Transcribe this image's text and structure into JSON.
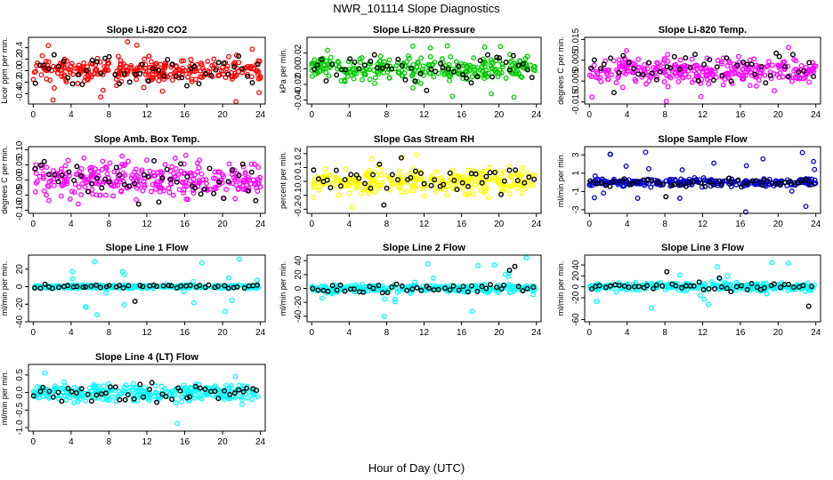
{
  "figure": {
    "title": "NWR_101114  Slope Diagnostics",
    "xlabel": "Hour of Day (UTC)"
  },
  "chart_data": [
    {
      "type": "scatter",
      "title": "Slope Li-820 CO2",
      "ylabel": "Licor ppm per min.",
      "color": "#ff0000",
      "xlim": [
        -0.5,
        24.5
      ],
      "ylim": [
        -0.58,
        0.58
      ],
      "xticks": [
        0,
        4,
        8,
        12,
        16,
        20,
        24
      ],
      "yticks": [
        -0.4,
        -0.2,
        0.0,
        0.2,
        0.4
      ],
      "ytick_labels": [
        "-0.4",
        "-0.2",
        "0.0",
        "0.2",
        "0.4"
      ],
      "summary": {
        "main_spread": 0.3,
        "outlier_spread": 0.55,
        "seed": 11
      }
    },
    {
      "type": "scatter",
      "title": "Slope Li-820 Pressure",
      "ylabel": "kPa per min.",
      "color": "#00cc00",
      "xlim": [
        -0.5,
        24.5
      ],
      "ylim": [
        -0.045,
        0.04
      ],
      "xticks": [
        0,
        4,
        8,
        12,
        16,
        20,
        24
      ],
      "yticks": [
        -0.04,
        -0.02,
        0.0,
        0.02
      ],
      "ytick_labels": [
        "-0.04",
        "-0.02",
        "0.00",
        "0.02"
      ],
      "summary": {
        "main_spread": 0.022,
        "outlier_spread": 0.038,
        "seed": 23
      }
    },
    {
      "type": "scatter",
      "title": "Slope Li-820 Temp.",
      "ylabel": "degrees C per min.",
      "color": "#ff00ff",
      "xlim": [
        -0.5,
        24.5
      ],
      "ylim": [
        -0.016,
        0.016
      ],
      "xticks": [
        0,
        4,
        8,
        12,
        16,
        20,
        24
      ],
      "yticks": [
        -0.015,
        -0.005,
        0.005,
        0.015
      ],
      "ytick_labels": [
        "-0.015",
        "-0.005",
        "0.005",
        "0.015"
      ],
      "summary": {
        "main_spread": 0.009,
        "outlier_spread": 0.015,
        "seed": 37
      }
    },
    {
      "type": "scatter",
      "title": "Slope Amb. Box Temp.",
      "ylabel": "degrees C per min.",
      "color": "#ff00ff",
      "xlim": [
        -0.5,
        24.5
      ],
      "ylim": [
        -0.11,
        0.11
      ],
      "xticks": [
        0,
        4,
        8,
        12,
        16,
        20,
        24
      ],
      "yticks": [
        -0.1,
        -0.05,
        0.0,
        0.05,
        0.1
      ],
      "ytick_labels": [
        "-0.10",
        "-0.05",
        "0.00",
        "0.05",
        "0.10"
      ],
      "summary": {
        "main_spread": 0.08,
        "outlier_spread": 0.1,
        "seed": 41
      }
    },
    {
      "type": "scatter",
      "title": "Slope Gas Stream RH",
      "ylabel": "percent per min.",
      "color": "#ffff00",
      "xlim": [
        -0.5,
        24.5
      ],
      "ylim": [
        -0.23,
        0.25
      ],
      "xticks": [
        0,
        4,
        8,
        12,
        16,
        20,
        24
      ],
      "yticks": [
        -0.2,
        -0.1,
        0.0,
        0.1,
        0.2
      ],
      "ytick_labels": [
        "-0.2",
        "-0.1",
        "0.0",
        "0.1",
        "0.2"
      ],
      "summary": {
        "main_spread": 0.13,
        "outlier_spread": 0.22,
        "seed": 53
      }
    },
    {
      "type": "scatter",
      "title": "Slope Sample Flow",
      "ylabel": "ml/min per min.",
      "color": "#0000cc",
      "xlim": [
        -0.5,
        24.5
      ],
      "ylim": [
        -3.4,
        3.9
      ],
      "xticks": [
        0,
        4,
        8,
        12,
        16,
        20,
        24
      ],
      "yticks": [
        -3,
        -1,
        1,
        3
      ],
      "ytick_labels": [
        "-3",
        "-1",
        "1",
        "3"
      ],
      "summary": {
        "main_spread": 0.6,
        "outlier_spread": 3.4,
        "seed": 67
      }
    },
    {
      "type": "scatter",
      "title": "Slope Line 1 Flow",
      "ylabel": "ml/min per min.",
      "color": "#00ffff",
      "xlim": [
        -0.5,
        24.5
      ],
      "ylim": [
        -40,
        36
      ],
      "xticks": [
        0,
        4,
        8,
        12,
        16,
        20,
        24
      ],
      "yticks": [
        -40,
        -20,
        0,
        20
      ],
      "ytick_labels": [
        "-40",
        "-20",
        "0",
        "20"
      ],
      "summary": {
        "main_spread": 3,
        "outlier_spread": 35,
        "seed": 71
      }
    },
    {
      "type": "scatter",
      "title": "Slope Line 2 Flow",
      "ylabel": "ml/min per min.",
      "color": "#00ffff",
      "xlim": [
        -0.5,
        24.5
      ],
      "ylim": [
        -48,
        48
      ],
      "xticks": [
        0,
        4,
        8,
        12,
        16,
        20,
        24
      ],
      "yticks": [
        -40,
        -20,
        0,
        20,
        40
      ],
      "ytick_labels": [
        "-40",
        "-20",
        "0",
        "20",
        "40"
      ],
      "summary": {
        "main_spread": 8,
        "outlier_spread": 45,
        "seed": 83
      }
    },
    {
      "type": "scatter",
      "title": "Slope Line 3 Flow",
      "ylabel": "ml/min per min.",
      "color": "#00ffff",
      "xlim": [
        -0.5,
        24.5
      ],
      "ylim": [
        -64,
        58
      ],
      "xticks": [
        0,
        4,
        8,
        12,
        16,
        20,
        24
      ],
      "yticks": [
        -60,
        -20,
        0,
        20,
        40
      ],
      "ytick_labels": [
        "-60",
        "-20",
        "0",
        "20",
        "40"
      ],
      "summary": {
        "main_spread": 10,
        "outlier_spread": 55,
        "seed": 97
      }
    },
    {
      "type": "scatter",
      "title": "Slope Line 4 (LT) Flow",
      "ylabel": "ml/min per min.",
      "color": "#00ffff",
      "xlim": [
        -0.5,
        24.5
      ],
      "ylim": [
        -1.1,
        0.8
      ],
      "xticks": [
        0,
        4,
        8,
        12,
        16,
        20,
        24
      ],
      "yticks": [
        -1.0,
        -0.5,
        0.0,
        0.5
      ],
      "ytick_labels": [
        "-1.0",
        "-0.5",
        "0.0",
        "0.5"
      ],
      "summary": {
        "main_spread": 0.35,
        "outlier_spread": 1.0,
        "seed": 101
      }
    }
  ]
}
